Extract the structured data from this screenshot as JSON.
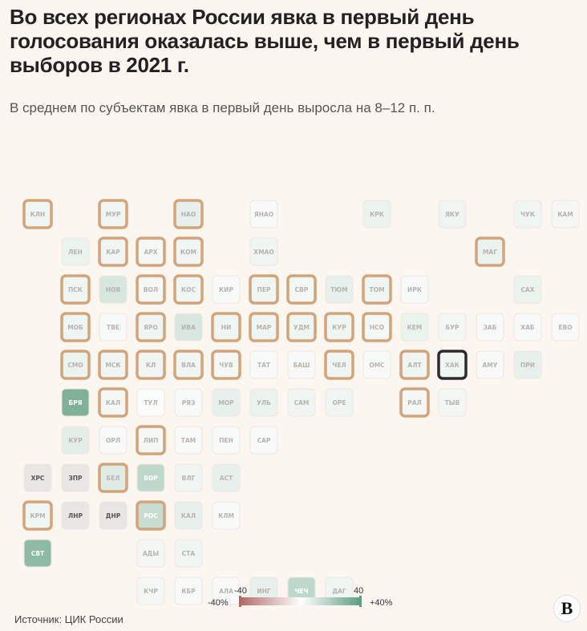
{
  "header": {
    "title": "Во всех регионах России явка в первый день голосования оказалась выше, чем в первый день выборов в 2021 г.",
    "subtitle": "В среднем по субъектам явка в первый день выросла на 8–12 п. п."
  },
  "footer": {
    "source": "Источник: ЦИК России",
    "logo": "В"
  },
  "colors": {
    "negative": "#b06b68",
    "zero": "#ffffff",
    "positive": "#5f9e7f",
    "highlight_outline": "#d3a47a",
    "selected_outline": "#2b2b2b",
    "no_data": "#e8e6e5",
    "background": "#fcf6f1"
  },
  "chart_data": {
    "type": "heatmap",
    "title": "Во всех регионах России явка в первый день голосования оказалась выше, чем в первый день выборов в 2021 г.",
    "subtitle": "В среднем по субъектам явка в первый день выросла на 8–12 п. п.",
    "legend": {
      "min_label": "-40",
      "max_label": "40",
      "min_pct_label": "-40%",
      "max_pct_label": "+40%",
      "min": -40,
      "max": 40,
      "placement": "bottom-center"
    },
    "cells": [
      {
        "row": 0,
        "col": 0,
        "label": "КЛН",
        "value": 4,
        "highlight": true
      },
      {
        "row": 0,
        "col": 2,
        "label": "МУР",
        "value": 4,
        "highlight": true
      },
      {
        "row": 0,
        "col": 4,
        "label": "НАО",
        "value": 6,
        "highlight": true
      },
      {
        "row": 0,
        "col": 6,
        "label": "ЯНАО",
        "value": 2
      },
      {
        "row": 0,
        "col": 9,
        "label": "КРК",
        "value": 5
      },
      {
        "row": 0,
        "col": 11,
        "label": "ЯКУ",
        "value": 4
      },
      {
        "row": 0,
        "col": 13,
        "label": "ЧУК",
        "value": 4
      },
      {
        "row": 0,
        "col": 14,
        "label": "КАМ",
        "value": 3
      },
      {
        "row": 1,
        "col": 1,
        "label": "ЛЕН",
        "value": 5
      },
      {
        "row": 1,
        "col": 2,
        "label": "КАР",
        "value": 4,
        "highlight": true
      },
      {
        "row": 1,
        "col": 3,
        "label": "АРХ",
        "value": 3,
        "highlight": true
      },
      {
        "row": 1,
        "col": 4,
        "label": "КОМ",
        "value": 4,
        "highlight": true
      },
      {
        "row": 1,
        "col": 6,
        "label": "ХМАО",
        "value": 4
      },
      {
        "row": 1,
        "col": 12,
        "label": "МАГ",
        "value": 5,
        "highlight": true
      },
      {
        "row": 2,
        "col": 1,
        "label": "ПСК",
        "value": 4,
        "highlight": true
      },
      {
        "row": 2,
        "col": 2,
        "label": "НОВ",
        "value": 10
      },
      {
        "row": 2,
        "col": 3,
        "label": "ВОЛ",
        "value": 3,
        "highlight": true
      },
      {
        "row": 2,
        "col": 4,
        "label": "КОС",
        "value": 4,
        "highlight": true
      },
      {
        "row": 2,
        "col": 5,
        "label": "КИР",
        "value": 2
      },
      {
        "row": 2,
        "col": 6,
        "label": "ПЕР",
        "value": 4,
        "highlight": true
      },
      {
        "row": 2,
        "col": 7,
        "label": "СВР",
        "value": 3,
        "highlight": true
      },
      {
        "row": 2,
        "col": 8,
        "label": "ТЮМ",
        "value": 6
      },
      {
        "row": 2,
        "col": 9,
        "label": "ТОМ",
        "value": 4,
        "highlight": true
      },
      {
        "row": 2,
        "col": 10,
        "label": "ИРК",
        "value": 2
      },
      {
        "row": 2,
        "col": 13,
        "label": "САХ",
        "value": 5
      },
      {
        "row": 3,
        "col": 1,
        "label": "МОБ",
        "value": 4,
        "highlight": true
      },
      {
        "row": 3,
        "col": 2,
        "label": "ТВЕ",
        "value": 2
      },
      {
        "row": 3,
        "col": 3,
        "label": "ЯРО",
        "value": 4,
        "highlight": true
      },
      {
        "row": 3,
        "col": 4,
        "label": "ИВА",
        "value": 10
      },
      {
        "row": 3,
        "col": 5,
        "label": "НИ",
        "value": 4,
        "highlight": true
      },
      {
        "row": 3,
        "col": 6,
        "label": "МАР",
        "value": 4,
        "highlight": true
      },
      {
        "row": 3,
        "col": 7,
        "label": "УДМ",
        "value": 4,
        "highlight": true
      },
      {
        "row": 3,
        "col": 8,
        "label": "КУР",
        "value": 4,
        "highlight": true
      },
      {
        "row": 3,
        "col": 9,
        "label": "НСО",
        "value": 3,
        "highlight": true
      },
      {
        "row": 3,
        "col": 10,
        "label": "КЕМ",
        "value": 5
      },
      {
        "row": 3,
        "col": 11,
        "label": "БУР",
        "value": 3
      },
      {
        "row": 3,
        "col": 12,
        "label": "ЗАБ",
        "value": 2
      },
      {
        "row": 3,
        "col": 13,
        "label": "ХАБ",
        "value": 2
      },
      {
        "row": 3,
        "col": 14,
        "label": "ЕВО",
        "value": 2
      },
      {
        "row": 4,
        "col": 1,
        "label": "СМО",
        "value": 5,
        "highlight": true
      },
      {
        "row": 4,
        "col": 2,
        "label": "МСК",
        "value": 4,
        "highlight": true
      },
      {
        "row": 4,
        "col": 3,
        "label": "КЛ",
        "value": 4,
        "highlight": true
      },
      {
        "row": 4,
        "col": 4,
        "label": "ВЛА",
        "value": 4,
        "highlight": true
      },
      {
        "row": 4,
        "col": 5,
        "label": "ЧУВ",
        "value": 3,
        "highlight": true
      },
      {
        "row": 4,
        "col": 6,
        "label": "ТАТ",
        "value": 2
      },
      {
        "row": 4,
        "col": 7,
        "label": "БАШ",
        "value": 2
      },
      {
        "row": 4,
        "col": 8,
        "label": "ЧЕЛ",
        "value": 4,
        "highlight": true
      },
      {
        "row": 4,
        "col": 9,
        "label": "ОМС",
        "value": 2
      },
      {
        "row": 4,
        "col": 10,
        "label": "АЛТ",
        "value": 4,
        "highlight": true
      },
      {
        "row": 4,
        "col": 11,
        "label": "ХАК",
        "value": 4,
        "selected": true
      },
      {
        "row": 4,
        "col": 12,
        "label": "АМУ",
        "value": 2
      },
      {
        "row": 4,
        "col": 13,
        "label": "ПРИ",
        "value": 6
      },
      {
        "row": 5,
        "col": 1,
        "label": "БРЯ",
        "value": 32
      },
      {
        "row": 5,
        "col": 2,
        "label": "КАЛ",
        "value": 3,
        "highlight": true
      },
      {
        "row": 5,
        "col": 3,
        "label": "ТУЛ",
        "value": 1
      },
      {
        "row": 5,
        "col": 4,
        "label": "РЯЗ",
        "value": 2
      },
      {
        "row": 5,
        "col": 5,
        "label": "МОР",
        "value": 6
      },
      {
        "row": 5,
        "col": 6,
        "label": "УЛЬ",
        "value": 5
      },
      {
        "row": 5,
        "col": 7,
        "label": "САМ",
        "value": 4
      },
      {
        "row": 5,
        "col": 8,
        "label": "ОРЕ",
        "value": 4
      },
      {
        "row": 5,
        "col": 10,
        "label": "РАЛ",
        "value": 3,
        "highlight": true
      },
      {
        "row": 5,
        "col": 11,
        "label": "ТЫВ",
        "value": 3
      },
      {
        "row": 6,
        "col": 1,
        "label": "КУР",
        "value": 7
      },
      {
        "row": 6,
        "col": 2,
        "label": "ОРЛ",
        "value": 2
      },
      {
        "row": 6,
        "col": 3,
        "label": "ЛИП",
        "value": 3,
        "highlight": true
      },
      {
        "row": 6,
        "col": 4,
        "label": "ТАМ",
        "value": 2
      },
      {
        "row": 6,
        "col": 5,
        "label": "ПЕН",
        "value": 2
      },
      {
        "row": 6,
        "col": 6,
        "label": "САР",
        "value": 2
      },
      {
        "row": 7,
        "col": 0,
        "label": "ХРС",
        "value": null
      },
      {
        "row": 7,
        "col": 1,
        "label": "ЗПР",
        "value": null
      },
      {
        "row": 7,
        "col": 2,
        "label": "БЕЛ",
        "value": 8,
        "highlight": true
      },
      {
        "row": 7,
        "col": 3,
        "label": "ВОР",
        "value": 16
      },
      {
        "row": 7,
        "col": 4,
        "label": "ВЛГ",
        "value": 4
      },
      {
        "row": 7,
        "col": 5,
        "label": "АСТ",
        "value": 6
      },
      {
        "row": 8,
        "col": 0,
        "label": "КРМ",
        "value": 4,
        "highlight": true
      },
      {
        "row": 8,
        "col": 1,
        "label": "ЛНР",
        "value": null
      },
      {
        "row": 8,
        "col": 2,
        "label": "ДНР",
        "value": null
      },
      {
        "row": 8,
        "col": 3,
        "label": "РОС",
        "value": 14,
        "highlight": true
      },
      {
        "row": 8,
        "col": 4,
        "label": "КАЛ",
        "value": 6
      },
      {
        "row": 8,
        "col": 5,
        "label": "КЛМ",
        "value": 2
      },
      {
        "row": 9,
        "col": 0,
        "label": "СВТ",
        "value": 28
      },
      {
        "row": 9,
        "col": 3,
        "label": "АДЫ",
        "value": 3
      },
      {
        "row": 9,
        "col": 4,
        "label": "СТА",
        "value": 4
      },
      {
        "row": 10,
        "col": 3,
        "label": "КЧР",
        "value": 3
      },
      {
        "row": 10,
        "col": 4,
        "label": "КБР",
        "value": 2
      },
      {
        "row": 10,
        "col": 5,
        "label": "АЛА",
        "value": 2
      },
      {
        "row": 10,
        "col": 6,
        "label": "ИНГ",
        "value": 6
      },
      {
        "row": 10,
        "col": 7,
        "label": "ЧЕЧ",
        "value": 16
      },
      {
        "row": 10,
        "col": 8,
        "label": "ДАГ",
        "value": 4
      }
    ]
  }
}
